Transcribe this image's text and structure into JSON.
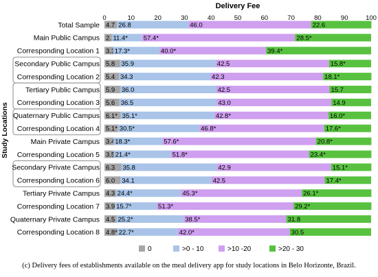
{
  "chart_data": {
    "type": "bar",
    "stacked": true,
    "orientation": "horizontal",
    "title": "Delivery Fee",
    "ylabel": "Study Locations",
    "xlim": [
      0,
      100
    ],
    "x_ticks": [
      "0",
      "10",
      "20",
      "30",
      "40",
      "50",
      "60",
      "70",
      "80",
      "90",
      "100"
    ],
    "grid": false,
    "legend_position": "bottom",
    "categories": [
      "Total Sample",
      "Main Public Campus",
      "Corresponding Location 1",
      "Secondary Public Campus",
      "Corresponding Location 2",
      "Tertiary Public Campus",
      "Corresponding Location 3",
      "Quaternary Public Campus",
      "Corresponding Location 4",
      "Main Private Campus",
      "Corresponding Location 5",
      "Secondary Private Campus",
      "Corresponding Location 6",
      "Tertiary Private Campus",
      "Corresponding Location 7",
      "Quaternary Private Campus",
      "Corresponding Location 8"
    ],
    "boxed_pairs": [
      [
        3,
        4
      ],
      [
        5,
        6
      ],
      [
        7,
        8
      ],
      [
        11,
        12
      ]
    ],
    "series": [
      {
        "name": "0",
        "color": "#a6a6a6",
        "values": [
          4.7,
          2.7,
          3.3,
          5.8,
          5.4,
          5.9,
          5.6,
          6.1,
          5.1,
          3.4,
          3.5,
          6.3,
          6.0,
          4.3,
          3.9,
          4.5,
          4.8
        ],
        "labels": [
          "4.7",
          "2.7*",
          "3.3*",
          "5.8",
          "5.4",
          "5.9",
          "5.6",
          "6.1*",
          "5.1*",
          "3.4*",
          "3.5",
          "6.3",
          "6.0",
          "4.3",
          "3.9",
          "4.5",
          "4.8*"
        ]
      },
      {
        "name": ">0 - 10",
        "color": "#a9c4e8",
        "values": [
          26.8,
          11.4,
          17.3,
          35.9,
          34.3,
          36.0,
          36.5,
          35.1,
          30.5,
          18.3,
          21.4,
          35.8,
          34.1,
          24.4,
          15.7,
          25.2,
          22.7
        ],
        "labels": [
          "26.8",
          "11.4*",
          "17.3*",
          "35.9",
          "34.3",
          "36.0",
          "36.5",
          "35.1*",
          "30.5*",
          "18.3*",
          "21.4*",
          "35.8",
          "34.1",
          "24.4*",
          "15.7*",
          "25.2*",
          "22.7*"
        ]
      },
      {
        "name": ">10 -20",
        "color": "#cf9ff0",
        "values": [
          46.0,
          57.4,
          40.0,
          42.5,
          42.3,
          42.5,
          43.0,
          42.8,
          46.8,
          57.6,
          51.8,
          42.9,
          42.5,
          45.3,
          51.3,
          38.5,
          42.0
        ],
        "labels": [
          "46.0",
          "57.4*",
          "40.0*",
          "42.5",
          "42.3",
          "42.5",
          "43.0",
          "42.8*",
          "46.8*",
          "57.6*",
          "51.8*",
          "42.9",
          "42.5",
          "45.3*",
          "51.3*",
          "38.5*",
          "42.0*"
        ]
      },
      {
        "name": ">20 - 30",
        "color": "#58c240",
        "values": [
          22.6,
          28.5,
          39.4,
          15.8,
          18.1,
          15.7,
          14.9,
          16.0,
          17.6,
          20.8,
          23.4,
          15.1,
          17.4,
          26.1,
          29.2,
          31.8,
          30.5
        ],
        "labels": [
          "22.6",
          "28.5*",
          "39.4*",
          "15.8*",
          "18.1*",
          "15.7",
          "14.9",
          "16.0*",
          "17.6*",
          "20.8*",
          "23.4*",
          "15.1*",
          "17.4*",
          "26.1*",
          "29.2*",
          "31.8",
          "30.5"
        ]
      }
    ]
  },
  "caption": "(c) Delivery fees of establishments available on the meal delivery app for study locations in Belo Horizonte, Brazil."
}
